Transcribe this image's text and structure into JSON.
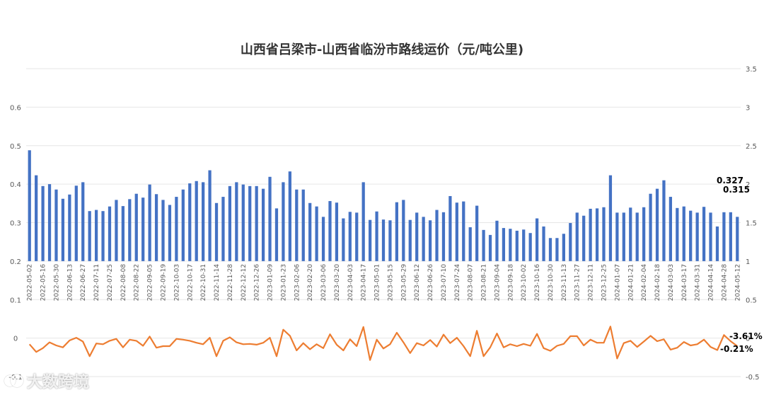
{
  "chart_data": {
    "type": "bar+line",
    "title": "山西省吕梁市-山西省临汾市路线运价（元/吨公里)",
    "x_labels": [
      "2022-05-02",
      "2022-05-16",
      "2022-05-30",
      "2022-06-13",
      "2022-06-27",
      "2022-07-11",
      "2022-07-25",
      "2022-08-08",
      "2022-08-22",
      "2022-09-05",
      "2022-09-19",
      "2022-10-03",
      "2022-10-17",
      "2022-10-31",
      "2022-11-14",
      "2022-11-28",
      "2022-12-12",
      "2022-12-26",
      "2023-01-09",
      "2023-01-23",
      "2023-02-06",
      "2023-02-20",
      "2023-03-06",
      "2023-03-20",
      "2023-04-03",
      "2023-04-17",
      "2023-05-01",
      "2023-05-15",
      "2023-05-29",
      "2023-06-12",
      "2023-06-26",
      "2023-07-10",
      "2023-07-24",
      "2023-08-07",
      "2023-08-21",
      "2023-09-04",
      "2023-09-18",
      "2023-10-02",
      "2023-10-16",
      "2023-10-30",
      "2023-11-13",
      "2023-11-27",
      "2023-12-11",
      "2023-12-25",
      "2024-01-07",
      "2024-01-21",
      "2024-02-04",
      "2024-02-18",
      "2024-03-03",
      "2024-03-17",
      "2024-03-31",
      "2024-04-14",
      "2024-04-28",
      "2024-05-12"
    ],
    "left_axis": {
      "min": 0.2,
      "max": 0.6,
      "ticks": [
        "0.6",
        "0.5",
        "0.4",
        "0.3",
        "0.2"
      ]
    },
    "lower_left_axis": {
      "min": -0.1,
      "max": 0.1,
      "ticks": [
        "0.1",
        "0",
        "-0.1"
      ]
    },
    "right_axis": {
      "min": -0.5,
      "max": 3.5,
      "ticks": [
        "3.5",
        "3",
        "2.5",
        "2",
        "1.5",
        "1",
        "0.5",
        "0",
        "-0.5"
      ]
    },
    "series": [
      {
        "type": "bar",
        "color": "#4472C4",
        "axis": "left",
        "values": [
          0.488,
          0.423,
          0.395,
          0.4,
          0.386,
          0.362,
          0.373,
          0.396,
          0.405,
          0.33,
          0.333,
          0.33,
          0.342,
          0.359,
          0.343,
          0.361,
          0.375,
          0.365,
          0.399,
          0.374,
          0.359,
          0.346,
          0.367,
          0.386,
          0.402,
          0.408,
          0.405,
          0.436,
          0.351,
          0.367,
          0.395,
          0.405,
          0.399,
          0.395,
          0.395,
          0.388,
          0.419,
          0.337,
          0.405,
          0.433,
          0.386,
          0.386,
          0.351,
          0.342,
          0.315,
          0.356,
          0.352,
          0.311,
          0.328,
          0.326,
          0.405,
          0.307,
          0.329,
          0.308,
          0.306,
          0.353,
          0.359,
          0.307,
          0.326,
          0.315,
          0.306,
          0.333,
          0.327,
          0.369,
          0.352,
          0.355,
          0.288,
          0.344,
          0.281,
          0.268,
          0.305,
          0.286,
          0.284,
          0.279,
          0.282,
          0.273,
          0.311,
          0.29,
          0.26,
          0.26,
          0.271,
          0.299,
          0.326,
          0.318,
          0.336,
          0.337,
          0.34,
          0.423,
          0.326,
          0.326,
          0.339,
          0.326,
          0.34,
          0.375,
          0.388,
          0.41,
          0.367,
          0.338,
          0.342,
          0.331,
          0.326,
          0.341,
          0.326,
          0.29,
          0.327,
          0.327,
          0.315
        ]
      },
      {
        "type": "line",
        "color": "#ED7D31",
        "axis": "lower_left",
        "values": [
          -0.016,
          -0.036,
          -0.026,
          -0.011,
          -0.019,
          -0.024,
          -0.006,
          0.001,
          -0.009,
          -0.047,
          -0.014,
          -0.016,
          -0.007,
          -0.002,
          -0.024,
          -0.004,
          -0.007,
          -0.02,
          0.004,
          -0.025,
          -0.021,
          -0.021,
          -0.002,
          -0.004,
          -0.007,
          -0.012,
          -0.016,
          0.001,
          -0.047,
          -0.007,
          0.002,
          -0.011,
          -0.016,
          -0.015,
          -0.017,
          -0.012,
          0.001,
          -0.047,
          0.022,
          0.006,
          -0.032,
          -0.013,
          -0.029,
          -0.016,
          -0.026,
          0.01,
          -0.017,
          -0.032,
          -0.003,
          -0.021,
          0.029,
          -0.057,
          -0.004,
          -0.027,
          -0.016,
          0.014,
          -0.011,
          -0.039,
          -0.013,
          -0.019,
          -0.005,
          -0.022,
          0.009,
          -0.013,
          0.001,
          -0.021,
          -0.047,
          0.019,
          -0.047,
          -0.024,
          0.012,
          -0.024,
          -0.016,
          -0.021,
          -0.015,
          -0.02,
          0.011,
          -0.026,
          -0.033,
          -0.02,
          -0.015,
          0.005,
          0.005,
          -0.019,
          -0.004,
          -0.012,
          -0.012,
          0.03,
          -0.053,
          -0.013,
          -0.007,
          -0.023,
          -0.009,
          0.006,
          -0.008,
          -0.003,
          -0.03,
          -0.025,
          -0.01,
          -0.019,
          -0.016,
          -0.004,
          -0.023,
          -0.031,
          0.008,
          -0.008,
          -0.021
        ]
      }
    ],
    "annotations": {
      "last_bar_1": "0.327",
      "last_bar_2": "0.315",
      "last_line_1": "-3.61%",
      "last_line_2": "-0.21%"
    },
    "grid": true,
    "legend": "none"
  },
  "watermark": {
    "text": "大数跨境"
  }
}
